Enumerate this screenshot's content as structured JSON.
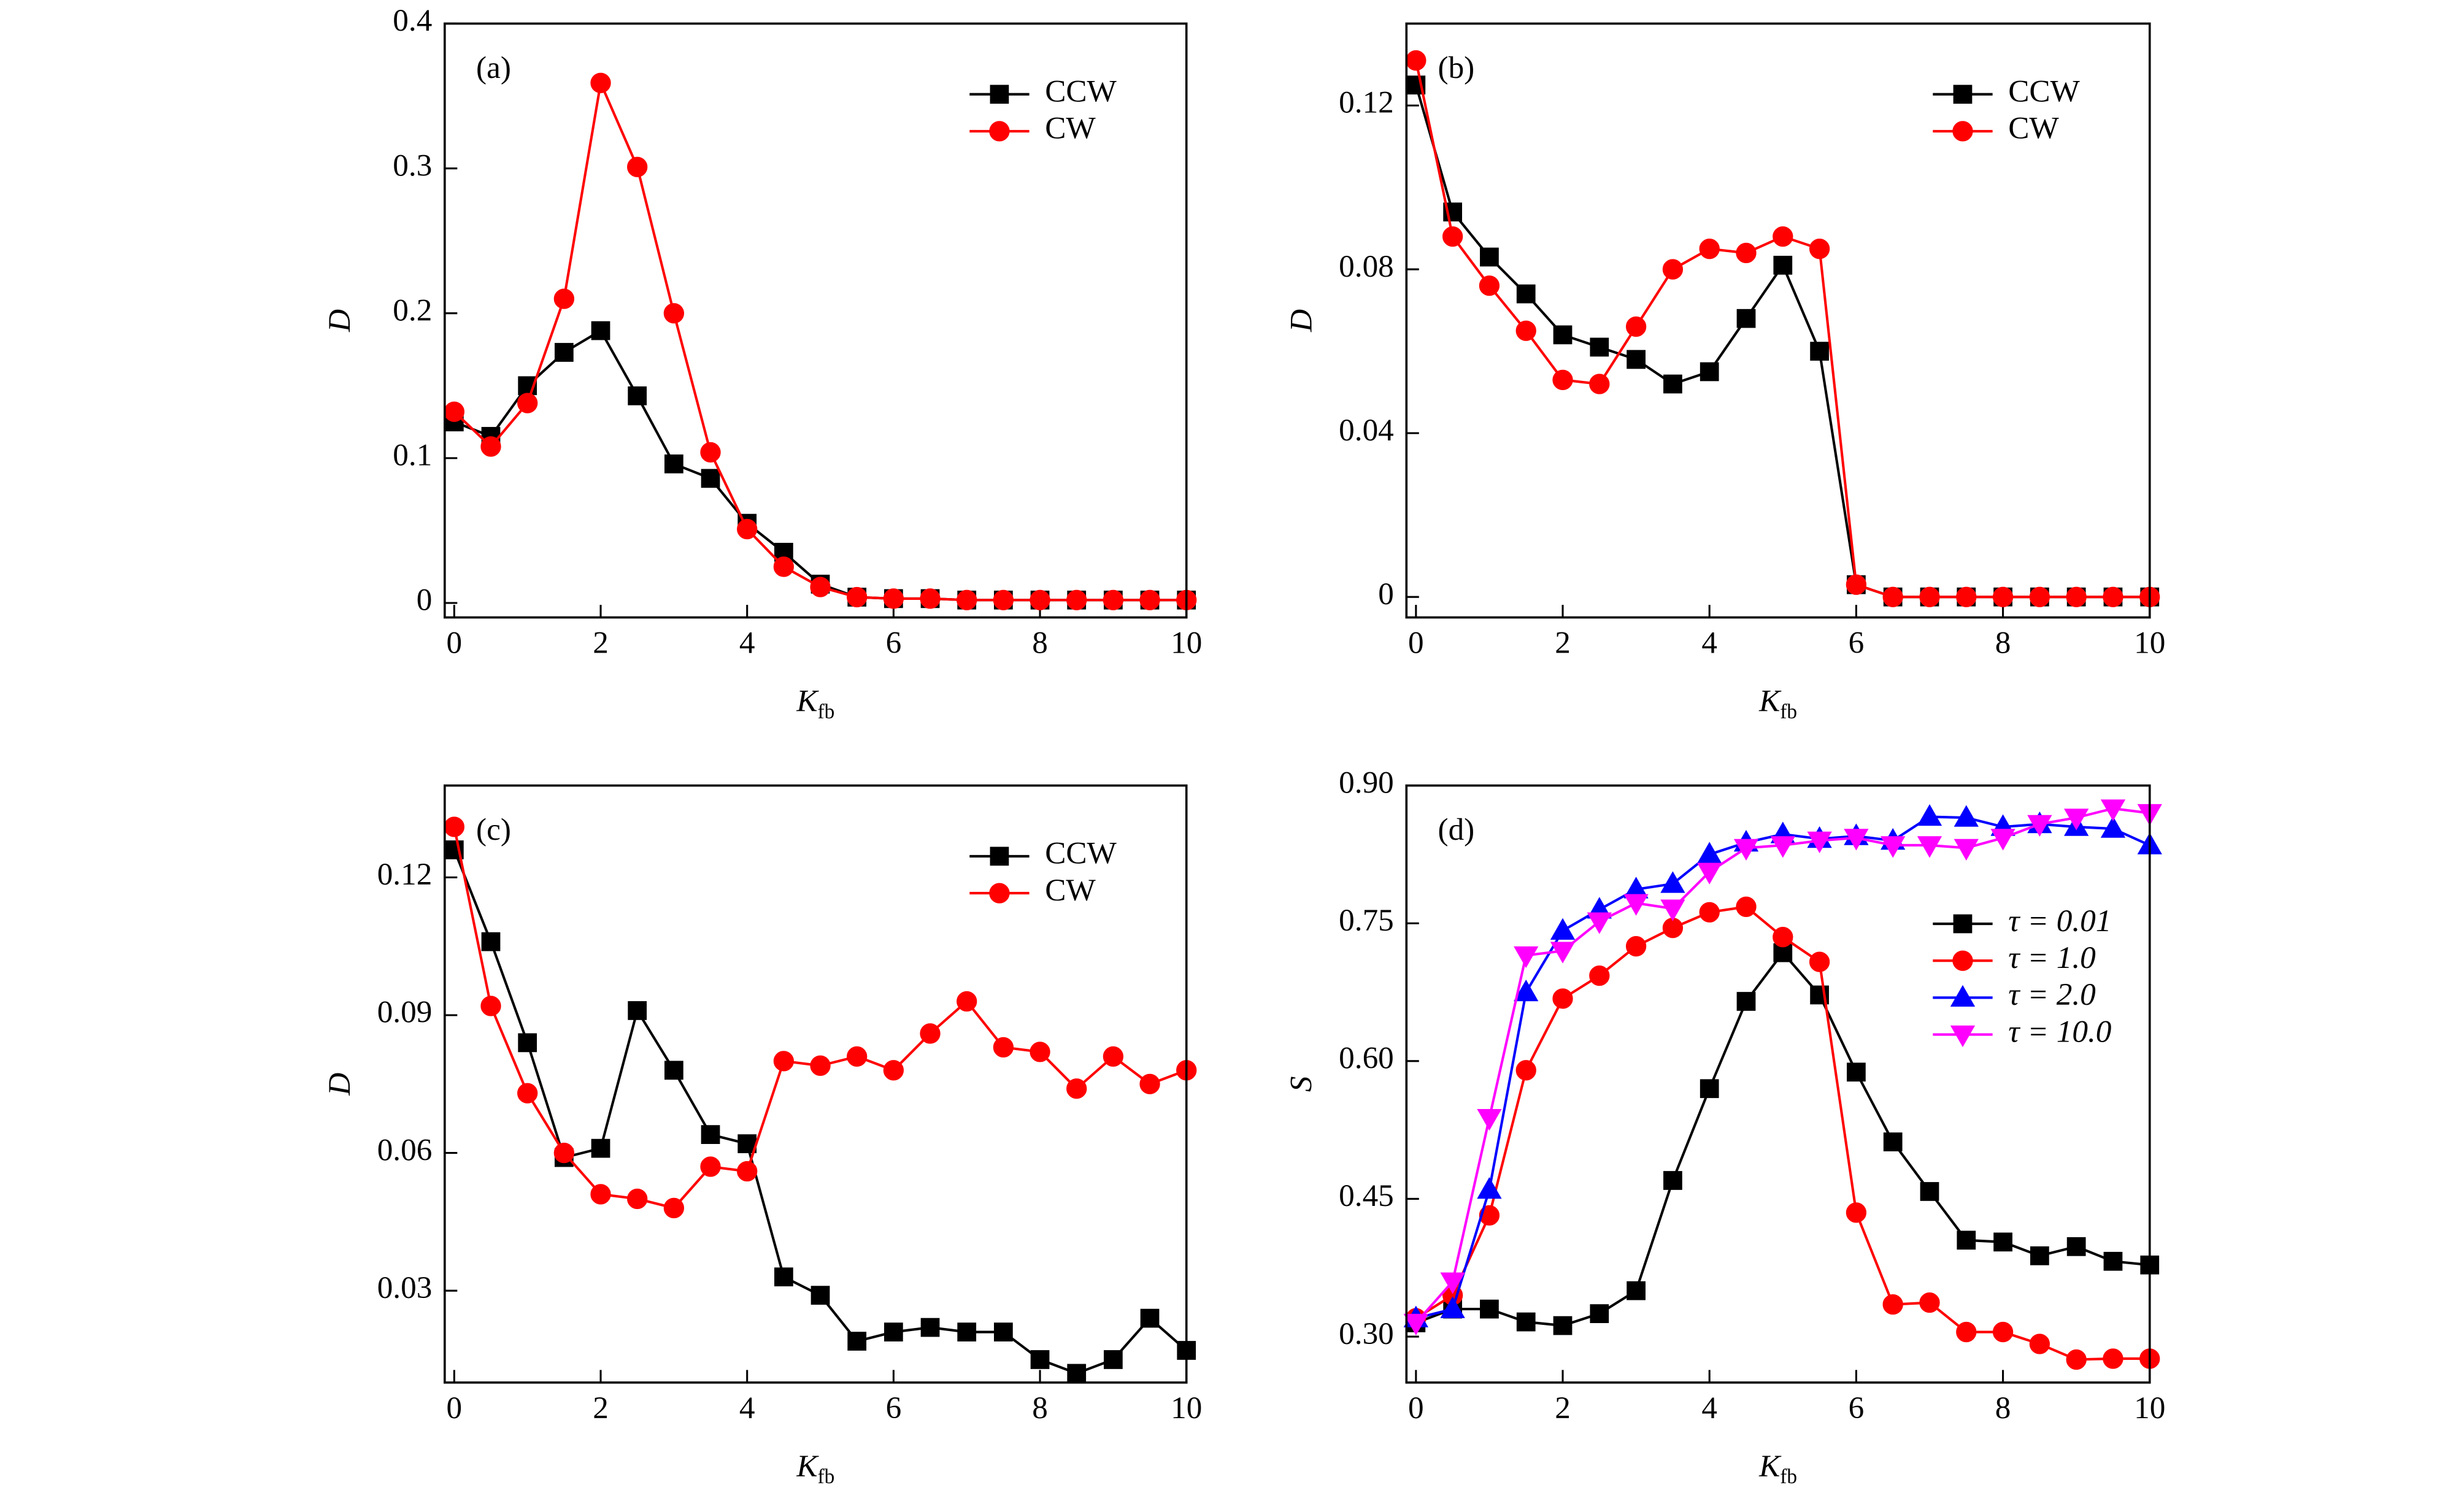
{
  "chart_data": [
    {
      "type": "line",
      "label": "(a)",
      "ylabel": "D",
      "xlabel": {
        "main": "K",
        "sub": "fb"
      },
      "x": [
        0,
        0.5,
        1,
        1.5,
        2,
        2.5,
        3,
        3.5,
        4,
        4.5,
        5,
        5.5,
        6,
        6.5,
        7,
        7.5,
        8,
        8.5,
        9,
        9.5,
        10
      ],
      "xlim": [
        -0.13,
        10
      ],
      "xticks": [
        0,
        2,
        4,
        6,
        8,
        10
      ],
      "ylim": [
        -0.01,
        0.4
      ],
      "yticks": [
        0,
        0.1,
        0.2,
        0.3,
        0.4
      ],
      "legend": "upper right",
      "series": [
        {
          "name": "CCW",
          "color": "#000000",
          "marker": "square",
          "values": [
            0.125,
            0.115,
            0.15,
            0.173,
            0.188,
            0.143,
            0.096,
            0.086,
            0.055,
            0.035,
            0.013,
            0.004,
            0.003,
            0.003,
            0.002,
            0.002,
            0.002,
            0.002,
            0.002,
            0.002,
            0.002
          ]
        },
        {
          "name": "CW",
          "color": "#ff0000",
          "marker": "circle",
          "values": [
            0.132,
            0.108,
            0.138,
            0.21,
            0.359,
            0.301,
            0.2,
            0.104,
            0.051,
            0.025,
            0.011,
            0.004,
            0.003,
            0.003,
            0.002,
            0.002,
            0.002,
            0.002,
            0.002,
            0.002,
            0.002
          ]
        }
      ]
    },
    {
      "type": "line",
      "label": "(b)",
      "ylabel": "D",
      "xlabel": {
        "main": "K",
        "sub": "fb"
      },
      "x": [
        0,
        0.5,
        1,
        1.5,
        2,
        2.5,
        3,
        3.5,
        4,
        4.5,
        5,
        5.5,
        6,
        6.5,
        7,
        7.5,
        8,
        8.5,
        9,
        9.5,
        10
      ],
      "xlim": [
        -0.13,
        10
      ],
      "xticks": [
        0,
        2,
        4,
        6,
        8,
        10
      ],
      "ylim": [
        -0.005,
        0.14
      ],
      "yticks": [
        0,
        0.04,
        0.08,
        0.12
      ],
      "legend": "upper right",
      "series": [
        {
          "name": "CCW",
          "color": "#000000",
          "marker": "square",
          "values": [
            0.125,
            0.094,
            0.083,
            0.074,
            0.064,
            0.061,
            0.058,
            0.052,
            0.055,
            0.068,
            0.081,
            0.06,
            0.003,
            0,
            0,
            0,
            0,
            0,
            0,
            0,
            0
          ]
        },
        {
          "name": "CW",
          "color": "#ff0000",
          "marker": "circle",
          "values": [
            0.131,
            0.088,
            0.076,
            0.065,
            0.053,
            0.052,
            0.066,
            0.08,
            0.085,
            0.084,
            0.088,
            0.085,
            0.003,
            0,
            0,
            0,
            0,
            0,
            0,
            0,
            0
          ]
        }
      ]
    },
    {
      "type": "line",
      "label": "(c)",
      "ylabel": "D",
      "xlabel": {
        "main": "K",
        "sub": "fb"
      },
      "x": [
        0,
        0.5,
        1,
        1.5,
        2,
        2.5,
        3,
        3.5,
        4,
        4.5,
        5,
        5.5,
        6,
        6.5,
        7,
        7.5,
        8,
        8.5,
        9,
        9.5,
        10
      ],
      "xlim": [
        -0.13,
        10
      ],
      "xticks": [
        0,
        2,
        4,
        6,
        8,
        10
      ],
      "ylim": [
        0.01,
        0.14
      ],
      "yticks": [
        0.03,
        0.06,
        0.09,
        0.12
      ],
      "legend": "upper right",
      "series": [
        {
          "name": "CCW",
          "color": "#000000",
          "marker": "square",
          "values": [
            0.126,
            0.106,
            0.084,
            0.059,
            0.061,
            0.091,
            0.078,
            0.064,
            0.062,
            0.033,
            0.029,
            0.019,
            0.021,
            0.022,
            0.021,
            0.021,
            0.015,
            0.012,
            0.015,
            0.024,
            0.017
          ]
        },
        {
          "name": "CW",
          "color": "#ff0000",
          "marker": "circle",
          "values": [
            0.131,
            0.092,
            0.073,
            0.06,
            0.051,
            0.05,
            0.048,
            0.057,
            0.056,
            0.08,
            0.079,
            0.081,
            0.078,
            0.086,
            0.093,
            0.083,
            0.082,
            0.074,
            0.081,
            0.075,
            0.078
          ]
        }
      ]
    },
    {
      "type": "line",
      "label": "(d)",
      "ylabel": "S",
      "xlabel": {
        "main": "K",
        "sub": "fb"
      },
      "x": [
        0,
        0.5,
        1,
        1.5,
        2,
        2.5,
        3,
        3.5,
        4,
        4.5,
        5,
        5.5,
        6,
        6.5,
        7,
        7.5,
        8,
        8.5,
        9,
        9.5,
        10
      ],
      "xlim": [
        -0.13,
        10
      ],
      "xticks": [
        0,
        2,
        4,
        6,
        8,
        10
      ],
      "ylim": [
        0.25,
        0.9
      ],
      "yticks": [
        {
          "value": 0.3,
          "label": "0.30"
        },
        0.45,
        {
          "value": 0.6,
          "label": "0.60"
        },
        0.75,
        {
          "value": 0.9,
          "label": "0.90"
        }
      ],
      "legend": "right",
      "series": [
        {
          "name": "τ = 0.01",
          "color": "#000000",
          "marker": "square",
          "values": [
            0.315,
            0.33,
            0.33,
            0.316,
            0.312,
            0.325,
            0.35,
            0.47,
            0.57,
            0.665,
            0.718,
            0.672,
            0.588,
            0.512,
            0.458,
            0.405,
            0.403,
            0.388,
            0.398,
            0.382,
            0.378
          ]
        },
        {
          "name": "τ = 1.0",
          "color": "#ff0000",
          "marker": "circle",
          "values": [
            0.32,
            0.345,
            0.432,
            0.59,
            0.668,
            0.693,
            0.725,
            0.745,
            0.762,
            0.768,
            0.735,
            0.708,
            0.435,
            0.335,
            0.337,
            0.305,
            0.305,
            0.292,
            0.275,
            0.276,
            0.276
          ]
        },
        {
          "name": "τ = 2.0",
          "color": "#0000ff",
          "marker": "triangle-up",
          "values": [
            0.32,
            0.33,
            0.46,
            0.675,
            0.742,
            0.765,
            0.787,
            0.793,
            0.825,
            0.838,
            0.847,
            0.842,
            0.845,
            0.84,
            0.866,
            0.865,
            0.855,
            0.858,
            0.855,
            0.853,
            0.835
          ]
        },
        {
          "name": "τ = 10.0",
          "color": "#ff00ff",
          "marker": "triangle-down",
          "values": [
            0.315,
            0.36,
            0.538,
            0.715,
            0.72,
            0.752,
            0.772,
            0.766,
            0.806,
            0.832,
            0.835,
            0.84,
            0.843,
            0.835,
            0.835,
            0.832,
            0.843,
            0.858,
            0.865,
            0.875,
            0.87
          ]
        }
      ]
    }
  ]
}
